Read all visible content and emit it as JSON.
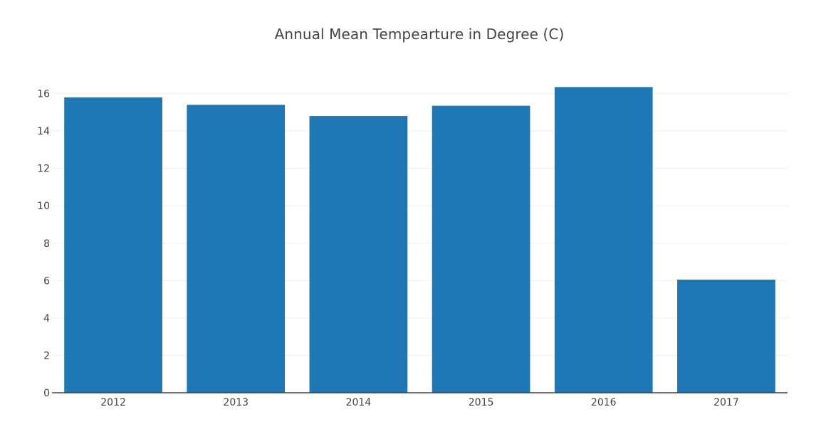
{
  "chart_data": {
    "type": "bar",
    "title": "Annual Mean Tempearture in Degree (C)",
    "xlabel": "",
    "ylabel": "",
    "categories": [
      "2012",
      "2013",
      "2014",
      "2015",
      "2016",
      "2017"
    ],
    "values": [
      15.8,
      15.4,
      14.8,
      15.35,
      16.35,
      6.05
    ],
    "ylim": [
      0,
      17.2
    ],
    "yticks": [
      0,
      2,
      4,
      6,
      8,
      10,
      12,
      14,
      16
    ],
    "grid": true,
    "legend": "none",
    "bar_color": "#1f77b4",
    "grid_color": "#eeeeee",
    "axis_color": "#444444"
  }
}
